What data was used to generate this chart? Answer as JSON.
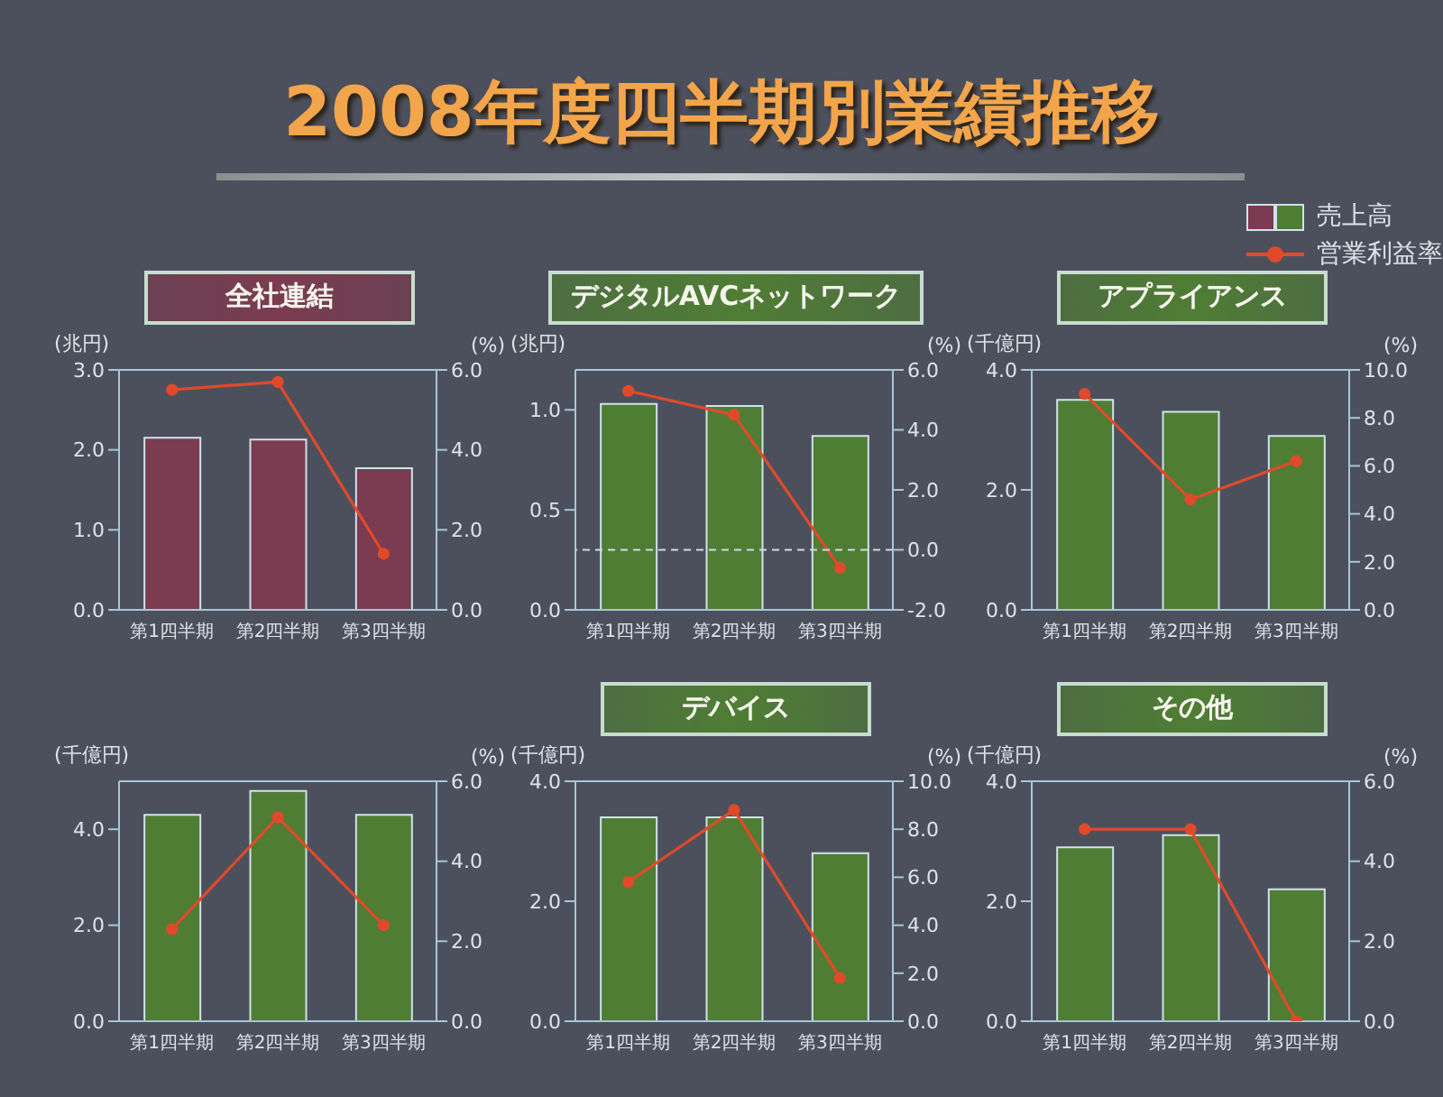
{
  "chart_data": [
    {
      "type": "other",
      "title": "2008年度四半期別業績推移"
    },
    {
      "type": "bar",
      "title": "全社連結",
      "categories": [
        "第1四半期",
        "第2四半期",
        "第3四半期"
      ],
      "ylabel": "(兆円)",
      "y2label": "(%)",
      "series": [
        {
          "color": "#7b3b50",
          "values": [
            2.15,
            2.13,
            1.77
          ]
        },
        {
          "type": "line",
          "axis": "y2",
          "color": "#e04a2a",
          "values": [
            5.5,
            5.7,
            1.4
          ]
        }
      ],
      "ylim": [
        0,
        3
      ],
      "yticks": [
        {
          "value": 0,
          "label": "0.0"
        },
        {
          "value": 1,
          "label": "1.0"
        },
        {
          "value": 2,
          "label": "2.0"
        },
        {
          "value": 3,
          "label": "3.0"
        }
      ],
      "y2lim": [
        0,
        6
      ],
      "y2ticks": [
        {
          "value": 0,
          "label": "0.0"
        },
        {
          "value": 2,
          "label": "2.0"
        },
        {
          "value": 4,
          "label": "4.0"
        },
        {
          "value": 6,
          "label": "6.0"
        }
      ],
      "marker": "circle"
    },
    {
      "type": "bar",
      "title": "デジタルAVCネットワーク",
      "categories": [
        "第1四半期",
        "第2四半期",
        "第3四半期"
      ],
      "ylabel": "(兆円)",
      "y2label": "(%)",
      "series": [
        {
          "color": "#4f7d34",
          "values": [
            1.03,
            1.02,
            0.87
          ]
        },
        {
          "type": "line",
          "axis": "y2",
          "color": "#e04a2a",
          "values": [
            5.3,
            4.5,
            -0.6
          ]
        }
      ],
      "ylim": [
        0,
        1.2
      ],
      "yticks": [
        {
          "value": 0,
          "label": "0.0"
        },
        {
          "value": 0.5,
          "label": "0.5"
        },
        {
          "value": 1,
          "label": "1.0"
        }
      ],
      "y2lim": [
        -2,
        6
      ],
      "y2ticks": [
        {
          "value": -2,
          "label": "-2.0"
        },
        {
          "value": 0,
          "label": "0.0"
        },
        {
          "value": 2,
          "label": "2.0"
        },
        {
          "value": 4,
          "label": "4.0"
        },
        {
          "value": 6,
          "label": "6.0"
        }
      ],
      "ref_lines": [
        {
          "axis": "y2",
          "value": 0,
          "color": "#d0dae2",
          "line_style": "dashed"
        }
      ],
      "marker": "circle"
    },
    {
      "type": "bar",
      "title": "アプライアンス",
      "categories": [
        "第1四半期",
        "第2四半期",
        "第3四半期"
      ],
      "ylabel": "(千億円)",
      "y2label": "(%)",
      "series": [
        {
          "name": "売上高",
          "color": "#4f7d34",
          "values": [
            3.5,
            3.3,
            2.9
          ]
        },
        {
          "name": "営業利益率",
          "type": "line",
          "axis": "y2",
          "color": "#e04a2a",
          "values": [
            9.0,
            4.6,
            6.2
          ]
        }
      ],
      "ylim": [
        0,
        4
      ],
      "yticks": [
        {
          "value": 0,
          "label": "0.0"
        },
        {
          "value": 2,
          "label": "2.0"
        },
        {
          "value": 4,
          "label": "4.0"
        }
      ],
      "y2lim": [
        0,
        10
      ],
      "y2ticks": [
        {
          "value": 0,
          "label": "0.0"
        },
        {
          "value": 2,
          "label": "2.0"
        },
        {
          "value": 4,
          "label": "4.0"
        },
        {
          "value": 6,
          "label": "6.0"
        },
        {
          "value": 8,
          "label": "8.0"
        },
        {
          "value": 10,
          "label": "10.0"
        }
      ],
      "marker": "circle",
      "legend": "top right"
    },
    {
      "type": "bar",
      "categories": [
        "第1四半期",
        "第2四半期",
        "第3四半期"
      ],
      "ylabel": "(千億円)",
      "y2label": "(%)",
      "series": [
        {
          "color": "#4f7d34",
          "values": [
            4.3,
            4.8,
            4.3
          ]
        },
        {
          "type": "line",
          "axis": "y2",
          "color": "#e04a2a",
          "values": [
            2.3,
            5.1,
            2.4
          ]
        }
      ],
      "ylim": [
        0,
        5
      ],
      "yticks": [
        {
          "value": 0,
          "label": "0.0"
        },
        {
          "value": 2,
          "label": "2.0"
        },
        {
          "value": 4,
          "label": "4.0"
        }
      ],
      "y2lim": [
        0,
        6
      ],
      "y2ticks": [
        {
          "value": 0,
          "label": "0.0"
        },
        {
          "value": 2,
          "label": "2.0"
        },
        {
          "value": 4,
          "label": "4.0"
        },
        {
          "value": 6,
          "label": "6.0"
        }
      ],
      "marker": "circle"
    },
    {
      "type": "bar",
      "title": "デバイス",
      "categories": [
        "第1四半期",
        "第2四半期",
        "第3四半期"
      ],
      "ylabel": "(千億円)",
      "y2label": "(%)",
      "series": [
        {
          "color": "#4f7d34",
          "values": [
            3.4,
            3.4,
            2.8
          ]
        },
        {
          "type": "line",
          "axis": "y2",
          "color": "#e04a2a",
          "values": [
            5.8,
            8.8,
            1.8
          ]
        }
      ],
      "ylim": [
        0,
        4
      ],
      "yticks": [
        {
          "value": 0,
          "label": "0.0"
        },
        {
          "value": 2,
          "label": "2.0"
        },
        {
          "value": 4,
          "label": "4.0"
        }
      ],
      "y2lim": [
        0,
        10
      ],
      "y2ticks": [
        {
          "value": 0,
          "label": "0.0"
        },
        {
          "value": 2,
          "label": "2.0"
        },
        {
          "value": 4,
          "label": "4.0"
        },
        {
          "value": 6,
          "label": "6.0"
        },
        {
          "value": 8,
          "label": "8.0"
        },
        {
          "value": 10,
          "label": "10.0"
        }
      ],
      "marker": "circle"
    },
    {
      "type": "bar",
      "title": "その他",
      "categories": [
        "第1四半期",
        "第2四半期",
        "第3四半期"
      ],
      "ylabel": "(千億円)",
      "y2label": "(%)",
      "series": [
        {
          "color": "#4f7d34",
          "values": [
            2.9,
            3.1,
            2.2
          ]
        },
        {
          "type": "line",
          "axis": "y2",
          "color": "#e04a2a",
          "values": [
            4.8,
            4.8,
            0.0
          ]
        }
      ],
      "ylim": [
        0,
        4
      ],
      "yticks": [
        {
          "value": 0,
          "label": "0.0"
        },
        {
          "value": 2,
          "label": "2.0"
        },
        {
          "value": 4,
          "label": "4.0"
        }
      ],
      "y2lim": [
        0,
        6
      ],
      "y2ticks": [
        {
          "value": 0,
          "label": "0.0"
        },
        {
          "value": 2,
          "label": "2.0"
        },
        {
          "value": 4,
          "label": "4.0"
        },
        {
          "value": 6,
          "label": "6.0"
        }
      ],
      "marker": "circle"
    }
  ]
}
